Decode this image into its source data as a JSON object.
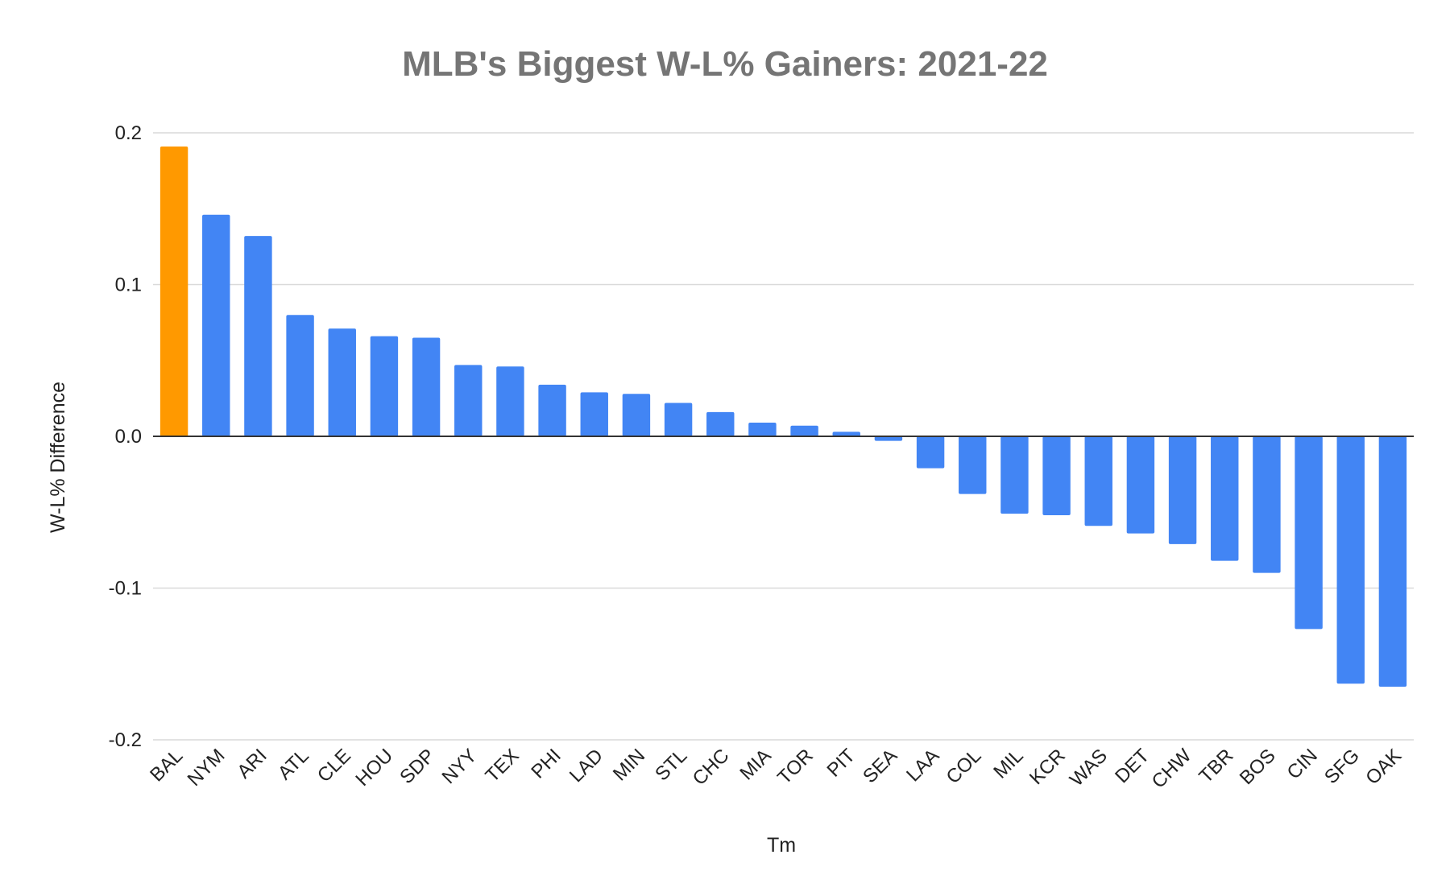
{
  "chart_data": {
    "type": "bar",
    "title": "MLB's Biggest W-L% Gainers: 2021-22",
    "xlabel": "Tm",
    "ylabel": "W-L% Difference",
    "ylim": [
      -0.2,
      0.2
    ],
    "yticks": [
      0.2,
      0.1,
      0.0,
      -0.1,
      -0.2
    ],
    "ytick_labels": [
      "0.2",
      "0.1",
      "0.0",
      "-0.1",
      "-0.2"
    ],
    "grid": true,
    "categories": [
      "BAL",
      "NYM",
      "ARI",
      "ATL",
      "CLE",
      "HOU",
      "SDP",
      "NYY",
      "TEX",
      "PHI",
      "LAD",
      "MIN",
      "STL",
      "CHC",
      "MIA",
      "TOR",
      "PIT",
      "SEA",
      "LAA",
      "COL",
      "MIL",
      "KCR",
      "WAS",
      "DET",
      "CHW",
      "TBR",
      "BOS",
      "CIN",
      "SFG",
      "OAK"
    ],
    "values": [
      0.191,
      0.146,
      0.132,
      0.08,
      0.071,
      0.066,
      0.065,
      0.047,
      0.046,
      0.034,
      0.029,
      0.028,
      0.022,
      0.016,
      0.009,
      0.007,
      0.003,
      -0.003,
      -0.021,
      -0.038,
      -0.051,
      -0.052,
      -0.059,
      -0.064,
      -0.071,
      -0.082,
      -0.09,
      -0.127,
      -0.163,
      -0.165
    ],
    "colors": {
      "default": "#4285f4",
      "highlight": "#ff9900",
      "highlight_category": "BAL",
      "grid": "#d9d9d9",
      "zero_line": "#333333"
    }
  }
}
